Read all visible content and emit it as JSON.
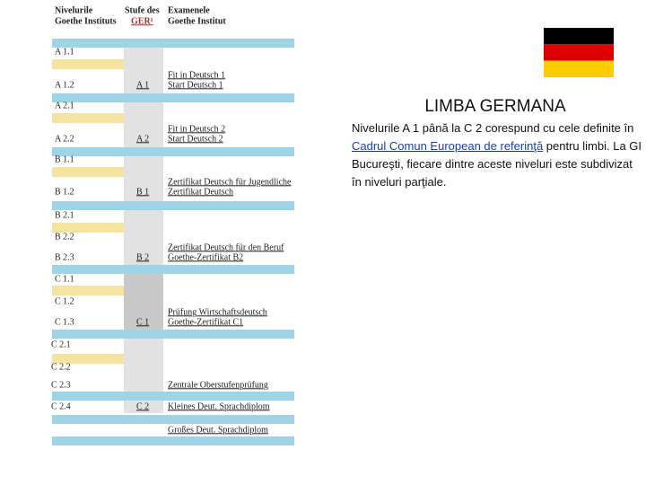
{
  "table": {
    "header": {
      "col1": [
        "Nivelurile",
        "Goethe Instituts"
      ],
      "col2": [
        "Stufe des",
        "GER¹"
      ],
      "col3": [
        "Examenele",
        "Goethe Institut"
      ]
    },
    "rows": [
      {
        "level": "A 1.1"
      },
      {
        "level": "A 1.2",
        "ger": "A 1",
        "exams": [
          "Fit in Deutsch 1",
          "Start Deutsch 1"
        ]
      },
      {
        "level": "A 2.1"
      },
      {
        "level": "A 2.2",
        "ger": "A 2",
        "exams": [
          "Fit in Deutsch 2",
          "Start Deutsch 2"
        ]
      },
      {
        "level": "B 1.1"
      },
      {
        "level": "B 1.2",
        "ger": "B 1",
        "exams": [
          "Zertifikat Deutsch für Jugendliche",
          "Zertifikat Deutsch"
        ]
      },
      {
        "level": "B 2.1"
      },
      {
        "level": "B 2.2"
      },
      {
        "level": "B 2.3",
        "ger": "B 2",
        "exams": [
          "Zertifikat Deutsch für den Beruf",
          "Goethe-Zertifikat B2"
        ]
      },
      {
        "level": "C 1.1"
      },
      {
        "level": "C 1.2"
      },
      {
        "level": "C 1.3",
        "ger": "C 1",
        "exams": [
          "Prüfung Wirtschaftsdeutsch",
          "Goethe-Zertifikat C1"
        ]
      },
      {
        "level": "C 2.1"
      },
      {
        "level": "C 2.2"
      },
      {
        "level": "C 2.3",
        "exams": [
          "Zentrale Oberstufenprüfung"
        ]
      },
      {
        "level": "C 2.4",
        "ger": "C 2",
        "exams": [
          "Kleines Deut. Sprachdiplom"
        ]
      },
      {
        "exams": [
          "Großes Deut. Sprachdiplom"
        ]
      }
    ]
  },
  "slide": {
    "title": "LIMBA GERMANA",
    "paragraph": {
      "before": "Nivelurile A 1 până la C 2 corespund cu cele definite în ",
      "link": "Cadrul Comun European de referinţă",
      "after": " pentru limbi. La GI Bucureşti, fiecare dintre aceste niveluri este subdivizat în niveluri parţiale."
    }
  }
}
